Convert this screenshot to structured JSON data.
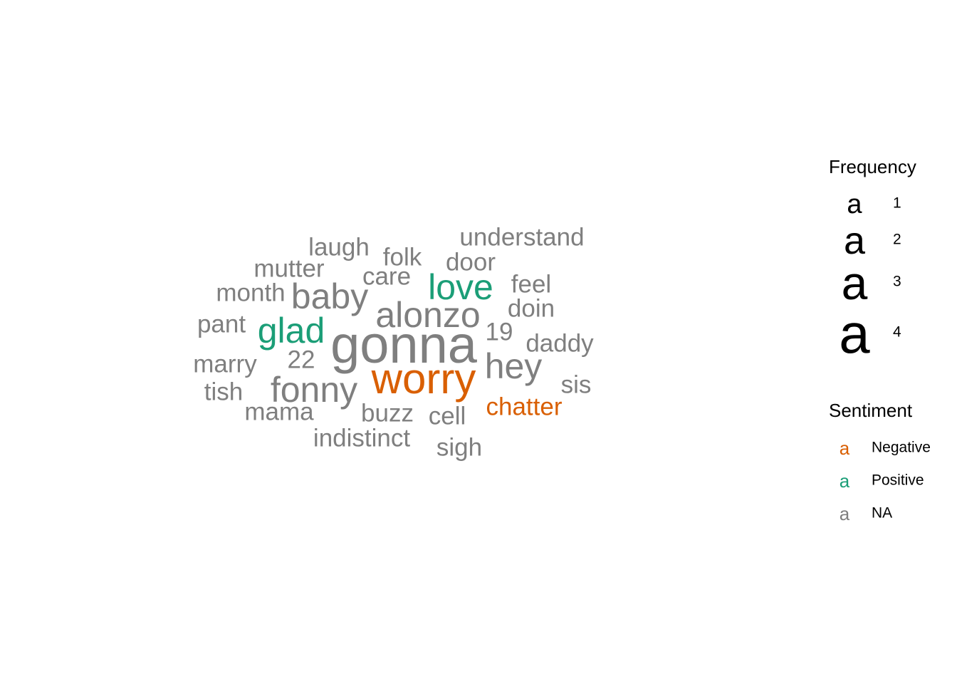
{
  "chart_data": {
    "type": "wordcloud",
    "words": [
      {
        "text": "gonna",
        "frequency": 4,
        "sentiment": "NA"
      },
      {
        "text": "worry",
        "frequency": 4,
        "sentiment": "Negative"
      },
      {
        "text": "alonzo",
        "frequency": 3,
        "sentiment": "NA"
      },
      {
        "text": "baby",
        "frequency": 3,
        "sentiment": "NA"
      },
      {
        "text": "fonny",
        "frequency": 3,
        "sentiment": "NA"
      },
      {
        "text": "hey",
        "frequency": 3,
        "sentiment": "NA"
      },
      {
        "text": "love",
        "frequency": 3,
        "sentiment": "Positive"
      },
      {
        "text": "glad",
        "frequency": 3,
        "sentiment": "Positive"
      },
      {
        "text": "understand",
        "frequency": 1,
        "sentiment": "NA"
      },
      {
        "text": "laugh",
        "frequency": 1,
        "sentiment": "NA"
      },
      {
        "text": "folk",
        "frequency": 1,
        "sentiment": "NA"
      },
      {
        "text": "door",
        "frequency": 1,
        "sentiment": "NA"
      },
      {
        "text": "mutter",
        "frequency": 1,
        "sentiment": "NA"
      },
      {
        "text": "care",
        "frequency": 1,
        "sentiment": "NA"
      },
      {
        "text": "feel",
        "frequency": 1,
        "sentiment": "NA"
      },
      {
        "text": "month",
        "frequency": 1,
        "sentiment": "NA"
      },
      {
        "text": "doin",
        "frequency": 1,
        "sentiment": "NA"
      },
      {
        "text": "pant",
        "frequency": 1,
        "sentiment": "NA"
      },
      {
        "text": "19",
        "frequency": 1,
        "sentiment": "NA"
      },
      {
        "text": "daddy",
        "frequency": 1,
        "sentiment": "NA"
      },
      {
        "text": "22",
        "frequency": 1,
        "sentiment": "NA"
      },
      {
        "text": "marry",
        "frequency": 1,
        "sentiment": "NA"
      },
      {
        "text": "sis",
        "frequency": 1,
        "sentiment": "NA"
      },
      {
        "text": "tish",
        "frequency": 1,
        "sentiment": "NA"
      },
      {
        "text": "chatter",
        "frequency": 1,
        "sentiment": "Negative"
      },
      {
        "text": "mama",
        "frequency": 1,
        "sentiment": "NA"
      },
      {
        "text": "buzz",
        "frequency": 1,
        "sentiment": "NA"
      },
      {
        "text": "cell",
        "frequency": 1,
        "sentiment": "NA"
      },
      {
        "text": "indistinct",
        "frequency": 1,
        "sentiment": "NA"
      },
      {
        "text": "sigh",
        "frequency": 1,
        "sentiment": "NA"
      }
    ],
    "legend": {
      "placement": "right",
      "frequency": {
        "title": "Frequency",
        "glyph": "a",
        "levels": [
          {
            "value": 1,
            "label": "1"
          },
          {
            "value": 2,
            "label": "2"
          },
          {
            "value": 3,
            "label": "3"
          },
          {
            "value": 4,
            "label": "4"
          }
        ]
      },
      "sentiment": {
        "title": "Sentiment",
        "glyph": "a",
        "levels": [
          {
            "name": "Negative",
            "label": "Negative",
            "color": "#d95f02"
          },
          {
            "name": "Positive",
            "label": "Positive",
            "color": "#1b9e77"
          },
          {
            "name": "NA",
            "label": "NA",
            "color": "#7f7f7f"
          }
        ]
      }
    }
  }
}
